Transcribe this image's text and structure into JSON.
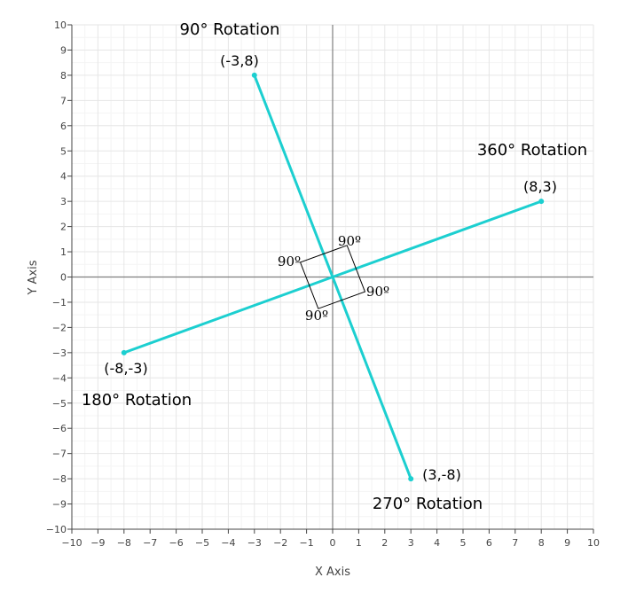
{
  "chart_data": {
    "type": "line",
    "xlabel": "X Axis",
    "ylabel": "Y Axis",
    "xlim": [
      -10,
      10
    ],
    "ylim": [
      -10,
      10
    ],
    "ticks": [
      -10,
      -9,
      -8,
      -7,
      -6,
      -5,
      -4,
      -3,
      -2,
      -1,
      0,
      1,
      2,
      3,
      4,
      5,
      6,
      7,
      8,
      9,
      10
    ],
    "grid": true,
    "minor_grid": true,
    "line_color": "#1ccfd0",
    "series": [
      {
        "x": [
          -3,
          3
        ],
        "y": [
          8,
          -8
        ]
      },
      {
        "x": [
          -8,
          8
        ],
        "y": [
          -3,
          3
        ]
      }
    ],
    "points": [
      {
        "x": -3,
        "y": 8,
        "label": "(-3,8)",
        "rotation": "90° Rotation"
      },
      {
        "x": 8,
        "y": 3,
        "label": "(8,3)",
        "rotation": "360° Rotation"
      },
      {
        "x": -8,
        "y": -3,
        "label": "(-8,-3)",
        "rotation": "180° Rotation"
      },
      {
        "x": 3,
        "y": -8,
        "label": "(3,-8)",
        "rotation": "270° Rotation"
      }
    ],
    "angle_labels": [
      "90º",
      "90º",
      "90º",
      "90º"
    ]
  }
}
